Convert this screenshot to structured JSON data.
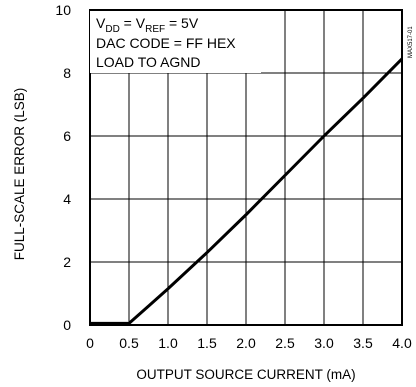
{
  "chart_data": {
    "type": "line",
    "xlabel": "OUTPUT SOURCE CURRENT (mA)",
    "ylabel": "FULL-SCALE ERROR (LSB)",
    "xlim": [
      0,
      4.0
    ],
    "ylim": [
      0,
      10
    ],
    "x_ticks": [
      "0",
      "0.5",
      "1.0",
      "1.5",
      "2.0",
      "2.5",
      "3.0",
      "3.5",
      "4.0"
    ],
    "y_ticks": [
      "0",
      "2",
      "4",
      "6",
      "8",
      "10"
    ],
    "grid": true,
    "annotations": [
      {
        "base": "V",
        "sub": "DD",
        "rest": " = V",
        "sub2": "REF",
        "tail": " = 5V"
      },
      {
        "text": "DAC CODE = FF HEX"
      },
      {
        "text": "LOAD TO AGND"
      }
    ],
    "watermark": "MAX517-01",
    "series": [
      {
        "x": [
          0.0,
          0.5,
          0.75,
          1.0,
          1.5,
          2.0,
          2.5,
          3.0,
          3.5,
          4.0
        ],
        "y": [
          0.05,
          0.05,
          0.6,
          1.15,
          2.3,
          3.5,
          4.75,
          6.0,
          7.2,
          8.45
        ]
      }
    ]
  }
}
